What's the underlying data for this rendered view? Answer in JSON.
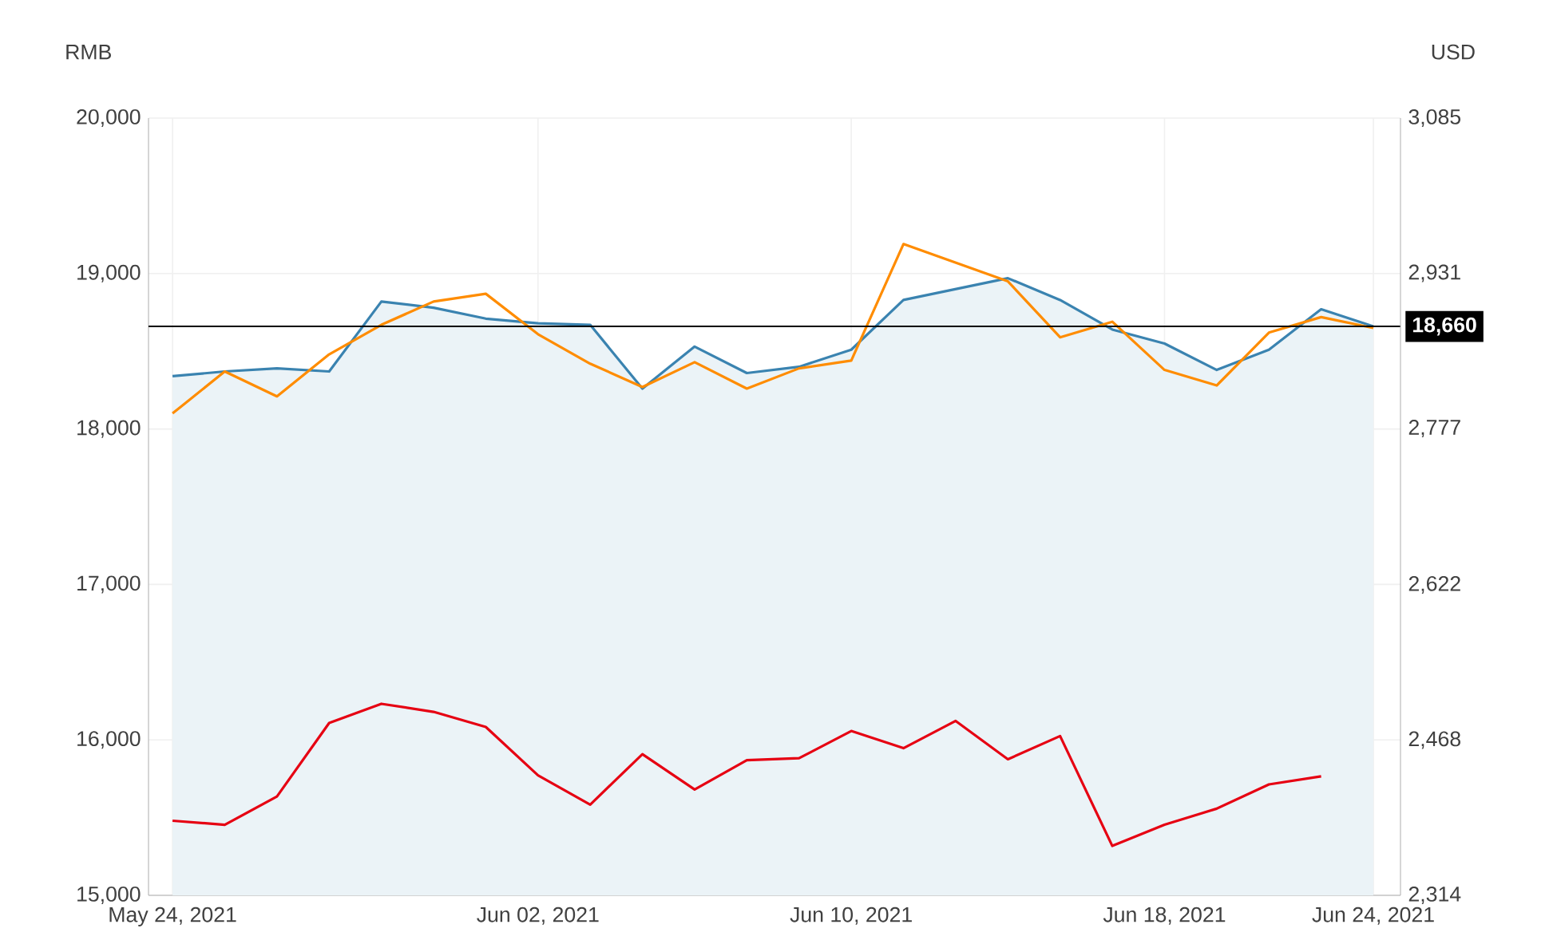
{
  "chart_data": {
    "type": "line",
    "ylabel": "RMB",
    "y2label": "USD",
    "categories": [
      "May 24, 2021",
      null,
      null,
      null,
      null,
      null,
      null,
      "Jun 02, 2021",
      null,
      null,
      null,
      null,
      null,
      "Jun 10, 2021",
      null,
      null,
      null,
      null,
      null,
      "Jun 18, 2021",
      null,
      null,
      null,
      "Jun 24, 2021"
    ],
    "series": [
      {
        "type": "area",
        "color": "#3a83b0",
        "values": [
          18340,
          18370,
          18390,
          18370,
          18820,
          18780,
          18710,
          18680,
          18670,
          18260,
          18530,
          18360,
          18400,
          18510,
          18830,
          18900,
          18970,
          18830,
          18640,
          18550,
          18380,
          18510,
          18770,
          18660
        ]
      },
      {
        "color": "#ff8c00",
        "values": [
          18100,
          18370,
          18210,
          18480,
          18670,
          18820,
          18870,
          18610,
          18420,
          18270,
          18430,
          18260,
          18390,
          18440,
          19190,
          19070,
          18950,
          18590,
          18690,
          18380,
          18280,
          18620,
          18720,
          18650
        ]
      },
      {
        "axis": "y2",
        "color": "#e60012",
        "values": [
          2388,
          2384,
          2412,
          2485,
          2504,
          2496,
          2481,
          2433,
          2404,
          2454,
          2419,
          2448,
          2450,
          2477,
          2460,
          2487,
          2449,
          2472,
          2363,
          2384,
          2400,
          2424,
          2432,
          null
        ]
      }
    ],
    "ylim": [
      15000,
      20000
    ],
    "yticks": [
      {
        "value": 15000,
        "label": "15,000"
      },
      {
        "value": 16000,
        "label": "16,000"
      },
      {
        "value": 17000,
        "label": "17,000"
      },
      {
        "value": 18000,
        "label": "18,000"
      },
      {
        "value": 19000,
        "label": "19,000"
      },
      {
        "value": 20000,
        "label": "20,000"
      }
    ],
    "y2lim": [
      2314,
      3085
    ],
    "y2ticks": [
      {
        "value": 2314,
        "label": "2,314"
      },
      {
        "value": 2468,
        "label": "2,468"
      },
      {
        "value": 2622,
        "label": "2,622"
      },
      {
        "value": 2777,
        "label": "2,777"
      },
      {
        "value": 2931,
        "label": "2,931"
      },
      {
        "value": 3085,
        "label": "3,085"
      }
    ],
    "ref_lines": [
      {
        "axis": "y",
        "value": 18660,
        "label": "18,660"
      }
    ],
    "grid": true
  }
}
